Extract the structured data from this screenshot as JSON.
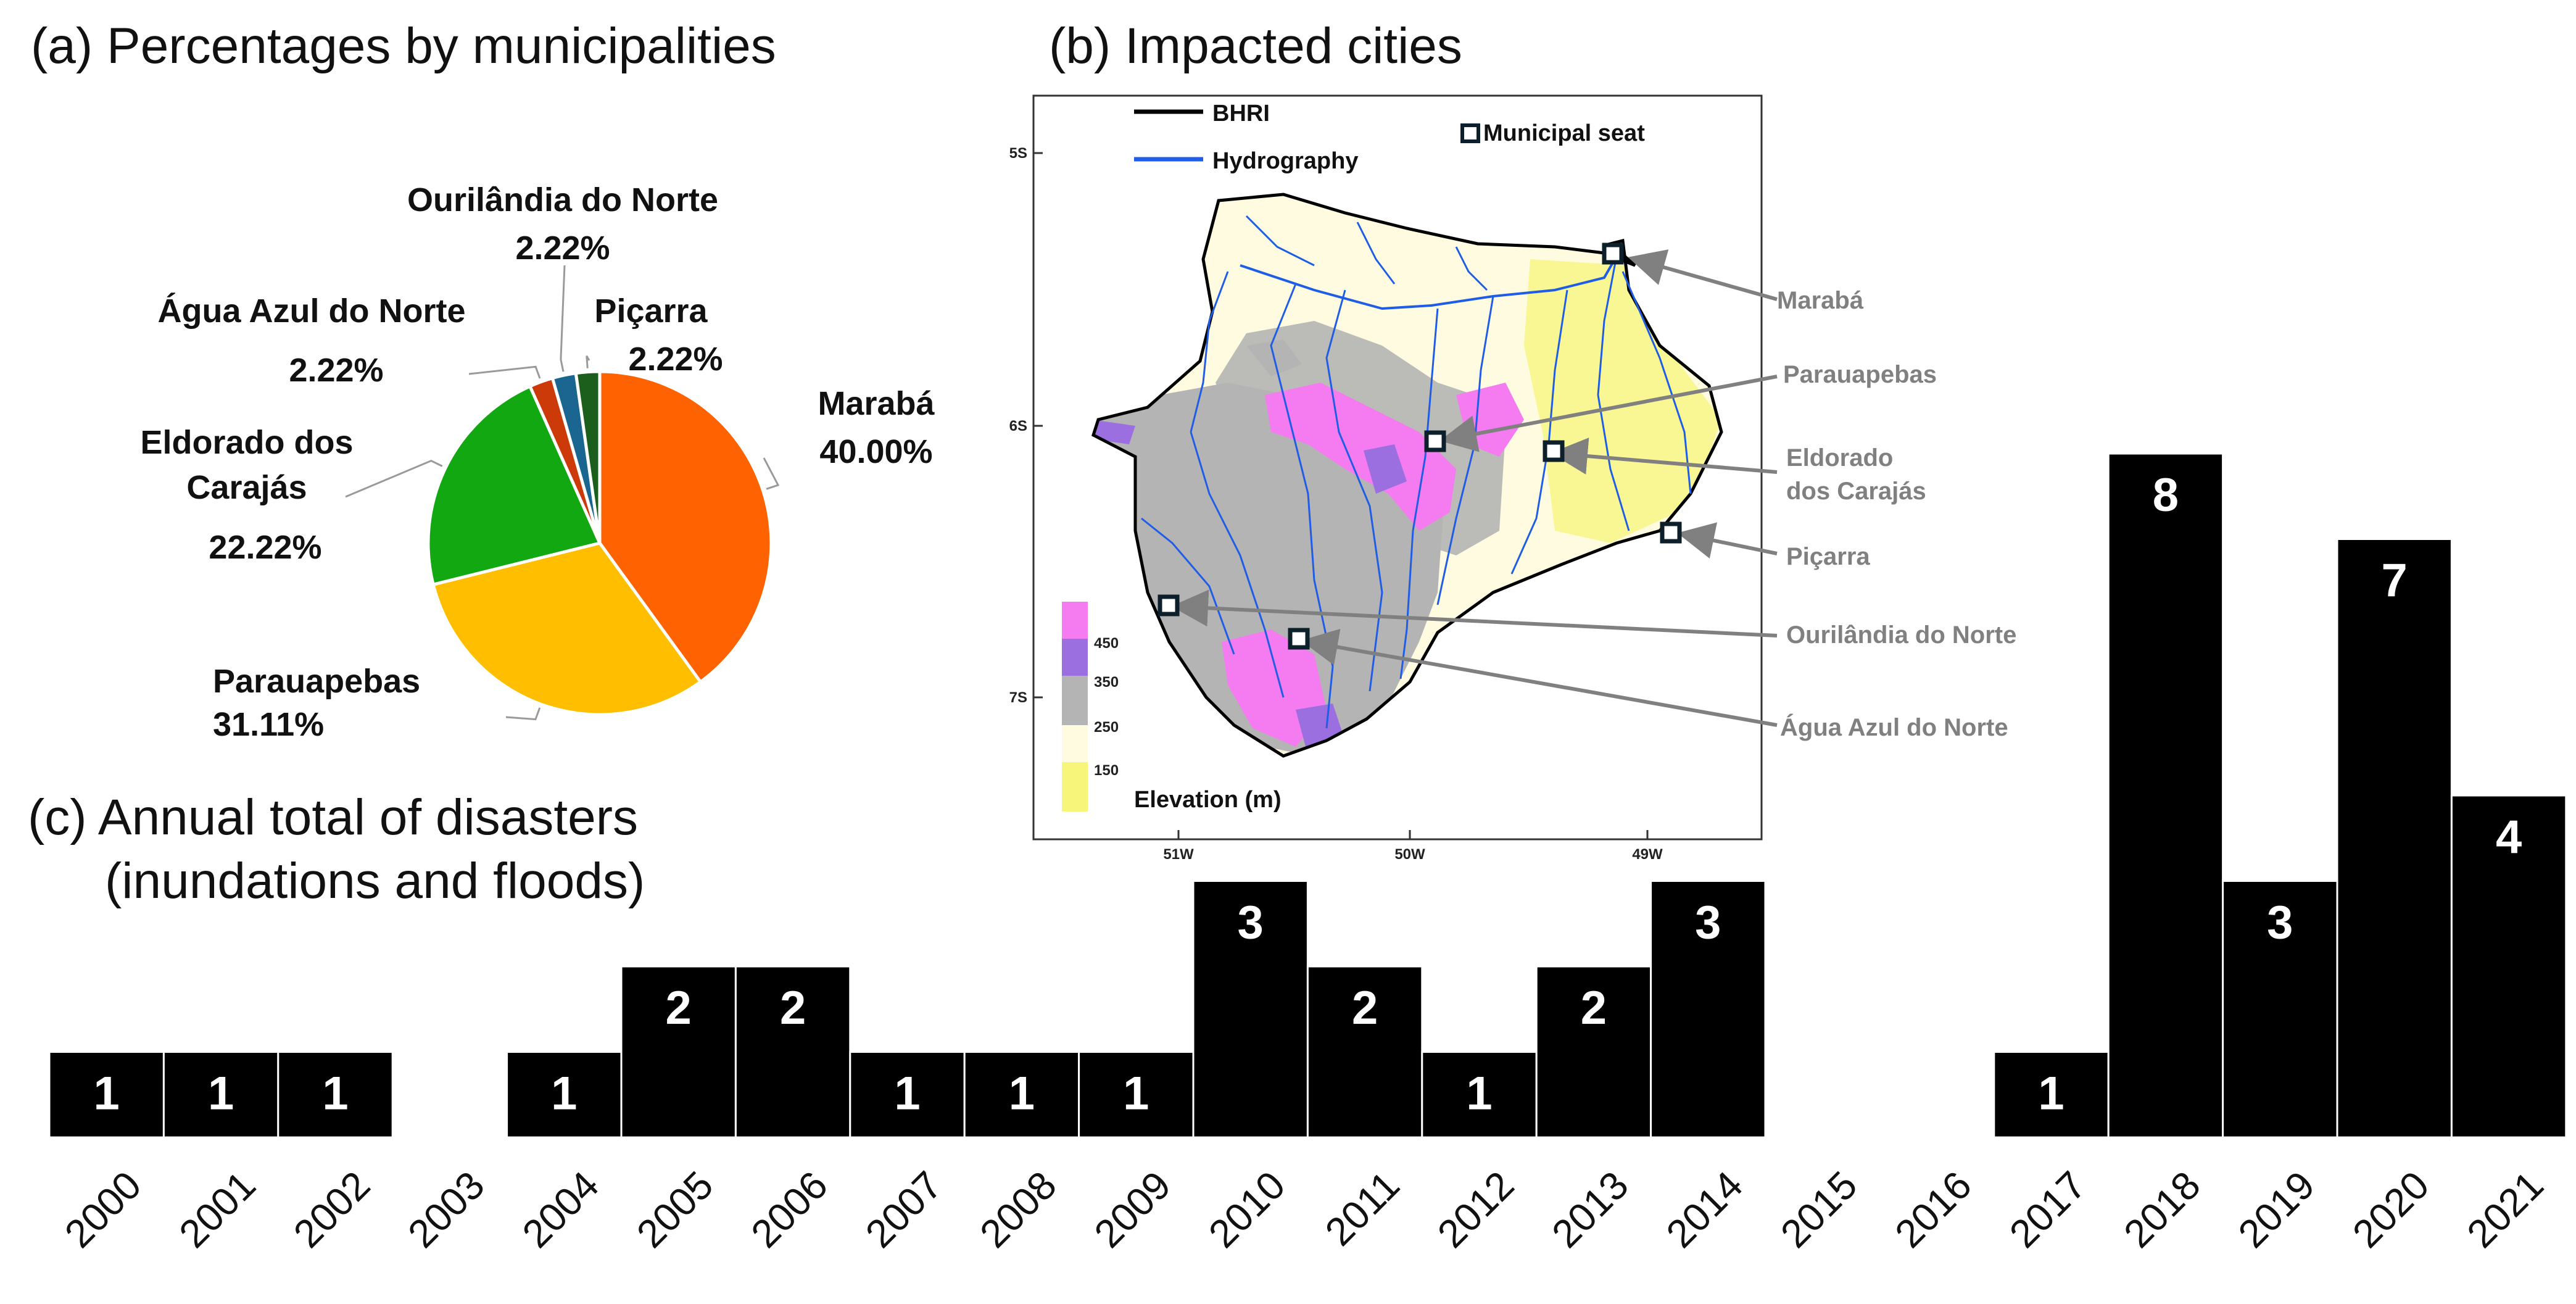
{
  "panel_a": {
    "title": "(a) Percentages by municipalities"
  },
  "panel_b": {
    "title": "(b) Impacted cities",
    "legend": {
      "bhri": "BHRI",
      "hydrography": "Hydrography",
      "municipal_seat": "Municipal seat"
    },
    "elevation": {
      "title": "Elevation (m)",
      "ticks": [
        "450",
        "350",
        "250",
        "150"
      ],
      "colors": [
        "#f47cf0",
        "#9b6fe0",
        "#b4b4b4",
        "#fffbe0",
        "#f7f57a"
      ]
    },
    "lat_ticks": [
      "5S",
      "6S",
      "7S"
    ],
    "lon_ticks": [
      "51W",
      "50W",
      "49W"
    ],
    "cities": [
      "Marabá",
      "Parauapebas",
      "Eldorado\ndos Carajás",
      "Piçarra",
      "Ourilândia do Norte",
      "Água Azul do Norte"
    ]
  },
  "panel_c": {
    "title_line1": "(c) Annual total of disasters",
    "title_line2": "(inundations and floods)"
  },
  "chart_data": [
    {
      "type": "pie",
      "title": "(a) Percentages by municipalities",
      "slices": [
        {
          "label": "Marabá",
          "value": 40.0,
          "display": "40.00%",
          "color": "#ff6200"
        },
        {
          "label": "Parauapebas",
          "value": 31.11,
          "display": "31.11%",
          "color": "#ffbf00"
        },
        {
          "label": "Eldorado dos Carajás",
          "value": 22.22,
          "display": "22.22%",
          "color": "#12a812"
        },
        {
          "label": "Água Azul do Norte",
          "value": 2.22,
          "display": "2.22%",
          "color": "#cc3a0a"
        },
        {
          "label": "Ourilândia do Norte",
          "value": 2.22,
          "display": "2.22%",
          "color": "#1a6690"
        },
        {
          "label": "Piçarra",
          "value": 2.22,
          "display": "2.22%",
          "color": "#1c5e1c"
        }
      ]
    },
    {
      "type": "bar",
      "title": "(c) Annual total of disasters (inundations and floods)",
      "categories": [
        "2000",
        "2001",
        "2002",
        "2003",
        "2004",
        "2005",
        "2006",
        "2007",
        "2008",
        "2009",
        "2010",
        "2011",
        "2012",
        "2013",
        "2014",
        "2015",
        "2016",
        "2017",
        "2018",
        "2019",
        "2020",
        "2021"
      ],
      "values": [
        1,
        1,
        1,
        0,
        1,
        2,
        2,
        1,
        1,
        1,
        3,
        2,
        1,
        2,
        3,
        0,
        0,
        1,
        8,
        3,
        7,
        4
      ],
      "bar_color": "#000000",
      "ylim": [
        0,
        8
      ]
    }
  ]
}
